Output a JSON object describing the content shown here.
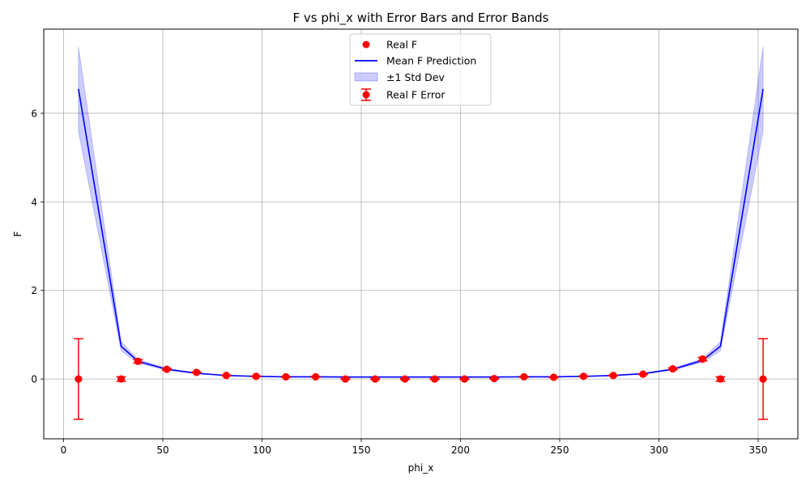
{
  "chart_data": {
    "type": "scatter",
    "title": "F vs phi_x with Error Bars and Error Bands",
    "xlabel": "phi_x",
    "ylabel": "F",
    "xlim": [
      -10,
      370
    ],
    "ylim": [
      -1.35,
      7.9
    ],
    "x_ticks": [
      0,
      50,
      100,
      150,
      200,
      250,
      300,
      350
    ],
    "y_ticks": [
      0,
      2,
      4,
      6
    ],
    "grid": true,
    "legend_position": "upper center",
    "legend": [
      {
        "label": "Real F",
        "kind": "marker",
        "color": "#ff0000"
      },
      {
        "label": "Mean F Prediction",
        "kind": "line",
        "color": "#0000ff"
      },
      {
        "label": "±1 Std Dev",
        "kind": "band",
        "color": "#0000ff"
      },
      {
        "label": "Real F Error",
        "kind": "errorbar",
        "color": "#ff0000"
      }
    ],
    "series": [
      {
        "name": "Mean F Prediction",
        "kind": "line",
        "color": "#0000ff",
        "x": [
          7.5,
          29,
          37.5,
          52,
          67,
          82,
          97,
          112,
          127,
          142,
          157,
          172,
          187,
          202,
          217,
          232,
          247,
          262,
          277,
          292,
          307,
          322,
          331,
          352.5
        ],
        "y": [
          6.55,
          0.74,
          0.4,
          0.22,
          0.13,
          0.08,
          0.06,
          0.05,
          0.05,
          0.045,
          0.045,
          0.045,
          0.045,
          0.045,
          0.045,
          0.05,
          0.05,
          0.06,
          0.08,
          0.12,
          0.22,
          0.42,
          0.74,
          6.55
        ]
      },
      {
        "name": "±1 Std Dev",
        "kind": "band",
        "color": "#0000ff",
        "x": [
          7.5,
          29,
          37.5,
          52,
          67,
          82,
          97,
          112,
          127,
          142,
          157,
          172,
          187,
          202,
          217,
          232,
          247,
          262,
          277,
          292,
          307,
          322,
          331,
          352.5
        ],
        "lower": [
          5.6,
          0.64,
          0.36,
          0.2,
          0.12,
          0.075,
          0.055,
          0.045,
          0.045,
          0.04,
          0.04,
          0.04,
          0.04,
          0.04,
          0.04,
          0.045,
          0.045,
          0.055,
          0.075,
          0.11,
          0.2,
          0.38,
          0.64,
          5.6
        ],
        "upper": [
          7.5,
          0.84,
          0.44,
          0.24,
          0.14,
          0.085,
          0.065,
          0.055,
          0.055,
          0.05,
          0.05,
          0.05,
          0.05,
          0.05,
          0.05,
          0.055,
          0.055,
          0.065,
          0.085,
          0.13,
          0.24,
          0.46,
          0.84,
          7.5
        ]
      },
      {
        "name": "Real F",
        "kind": "scatter",
        "color": "#ff0000",
        "x": [
          7.5,
          29,
          37.5,
          52,
          67,
          82,
          97,
          112,
          127,
          142,
          157,
          172,
          187,
          202,
          217,
          232,
          247,
          262,
          277,
          292,
          307,
          322,
          331,
          352.5
        ],
        "y": [
          0.0,
          0.0,
          0.4,
          0.22,
          0.15,
          0.08,
          0.06,
          0.05,
          0.05,
          0.0,
          0.0,
          0.0,
          0.0,
          0.0,
          0.01,
          0.05,
          0.04,
          0.06,
          0.08,
          0.11,
          0.23,
          0.45,
          0.0,
          0.0
        ]
      },
      {
        "name": "Real F Error",
        "kind": "errorbar",
        "color": "#ff0000",
        "x": [
          7.5,
          29,
          37.5,
          52,
          67,
          82,
          97,
          112,
          127,
          142,
          157,
          172,
          187,
          202,
          217,
          232,
          247,
          262,
          277,
          292,
          307,
          322,
          331,
          352.5
        ],
        "y": [
          0.0,
          0.0,
          0.4,
          0.22,
          0.15,
          0.08,
          0.06,
          0.05,
          0.05,
          0.0,
          0.0,
          0.0,
          0.0,
          0.0,
          0.01,
          0.05,
          0.04,
          0.06,
          0.08,
          0.11,
          0.23,
          0.45,
          0.0,
          0.0
        ],
        "err": [
          0.91,
          0.05,
          0.04,
          0.02,
          0.01,
          0.01,
          0.01,
          0.01,
          0.01,
          0.01,
          0.01,
          0.01,
          0.01,
          0.01,
          0.01,
          0.01,
          0.01,
          0.01,
          0.01,
          0.01,
          0.02,
          0.04,
          0.05,
          0.91
        ]
      }
    ]
  }
}
